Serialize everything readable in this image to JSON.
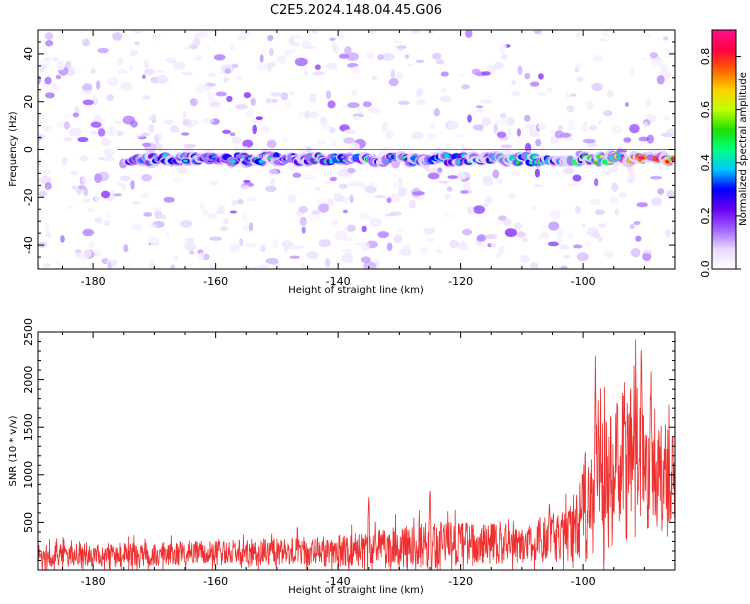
{
  "title": "C2E5.2024.148.04.45.G06",
  "chart_data": [
    {
      "type": "heatmap",
      "title": "C2E5.2024.148.04.45.G06",
      "xlabel": "Height of straight line (km)",
      "ylabel": "Frequency (Hz)",
      "xlim": [
        -189,
        -85
      ],
      "ylim": [
        -50,
        50
      ],
      "xticks": [
        -180,
        -160,
        -140,
        -120,
        -100
      ],
      "yticks": [
        -40,
        -20,
        0,
        20,
        40
      ],
      "ridge": {
        "start_x": -174,
        "end_x": -85,
        "center_freq_hz": -4,
        "description_points": [
          {
            "x": -172,
            "freq": -4,
            "amp": 0.35
          },
          {
            "x": -140,
            "freq": -5,
            "amp": 0.4
          },
          {
            "x": -120,
            "freq": -3,
            "amp": 0.4
          },
          {
            "x": -100,
            "freq": -4,
            "amp": 0.55
          },
          {
            "x": -90,
            "freq": -3,
            "amp": 0.9
          }
        ]
      },
      "colorbar": {
        "label": "Normalized spectral amplitude",
        "range": [
          0,
          0.9
        ],
        "ticks": [
          0.0,
          0.2,
          0.4,
          0.6,
          0.8
        ],
        "tick_labels": [
          "0.0",
          "0.2",
          "0.4",
          "0.6",
          "0.8"
        ],
        "colormap": [
          "#ffffff",
          "#e8d8ff",
          "#a060ff",
          "#6a00f0",
          "#0000ff",
          "#00c8ff",
          "#00ff80",
          "#20e000",
          "#c0ff00",
          "#ffd000",
          "#ff6000",
          "#ff0040",
          "#ff1090"
        ]
      }
    },
    {
      "type": "line",
      "xlabel": "Height of straight line (km)",
      "ylabel": "SNR (10 * v/v)",
      "xlim": [
        -189,
        -85
      ],
      "ylim": [
        0,
        2500
      ],
      "xticks": [
        -180,
        -160,
        -140,
        -120,
        -100
      ],
      "yticks": [
        500,
        1000,
        1500,
        2000,
        2500
      ],
      "series": [
        {
          "color": "#ee3030",
          "envelope": [
            {
              "x": -189,
              "base": 150,
              "noise": 120
            },
            {
              "x": -160,
              "base": 180,
              "noise": 130
            },
            {
              "x": -140,
              "base": 200,
              "noise": 170
            },
            {
              "x": -125,
              "base": 260,
              "noise": 250
            },
            {
              "x": -110,
              "base": 280,
              "noise": 200
            },
            {
              "x": -102,
              "base": 380,
              "noise": 300
            },
            {
              "x": -97,
              "base": 900,
              "noise": 700
            },
            {
              "x": -92,
              "base": 1100,
              "noise": 900
            },
            {
              "x": -86,
              "base": 900,
              "noise": 600
            }
          ],
          "peaks": [
            {
              "x": -98,
              "y": 2250
            },
            {
              "x": -90.5,
              "y": 2500
            },
            {
              "x": -89,
              "y": 2000
            },
            {
              "x": -125,
              "y": 900
            },
            {
              "x": -135,
              "y": 800
            },
            {
              "x": -105.5,
              "y": 750
            }
          ]
        }
      ]
    }
  ]
}
